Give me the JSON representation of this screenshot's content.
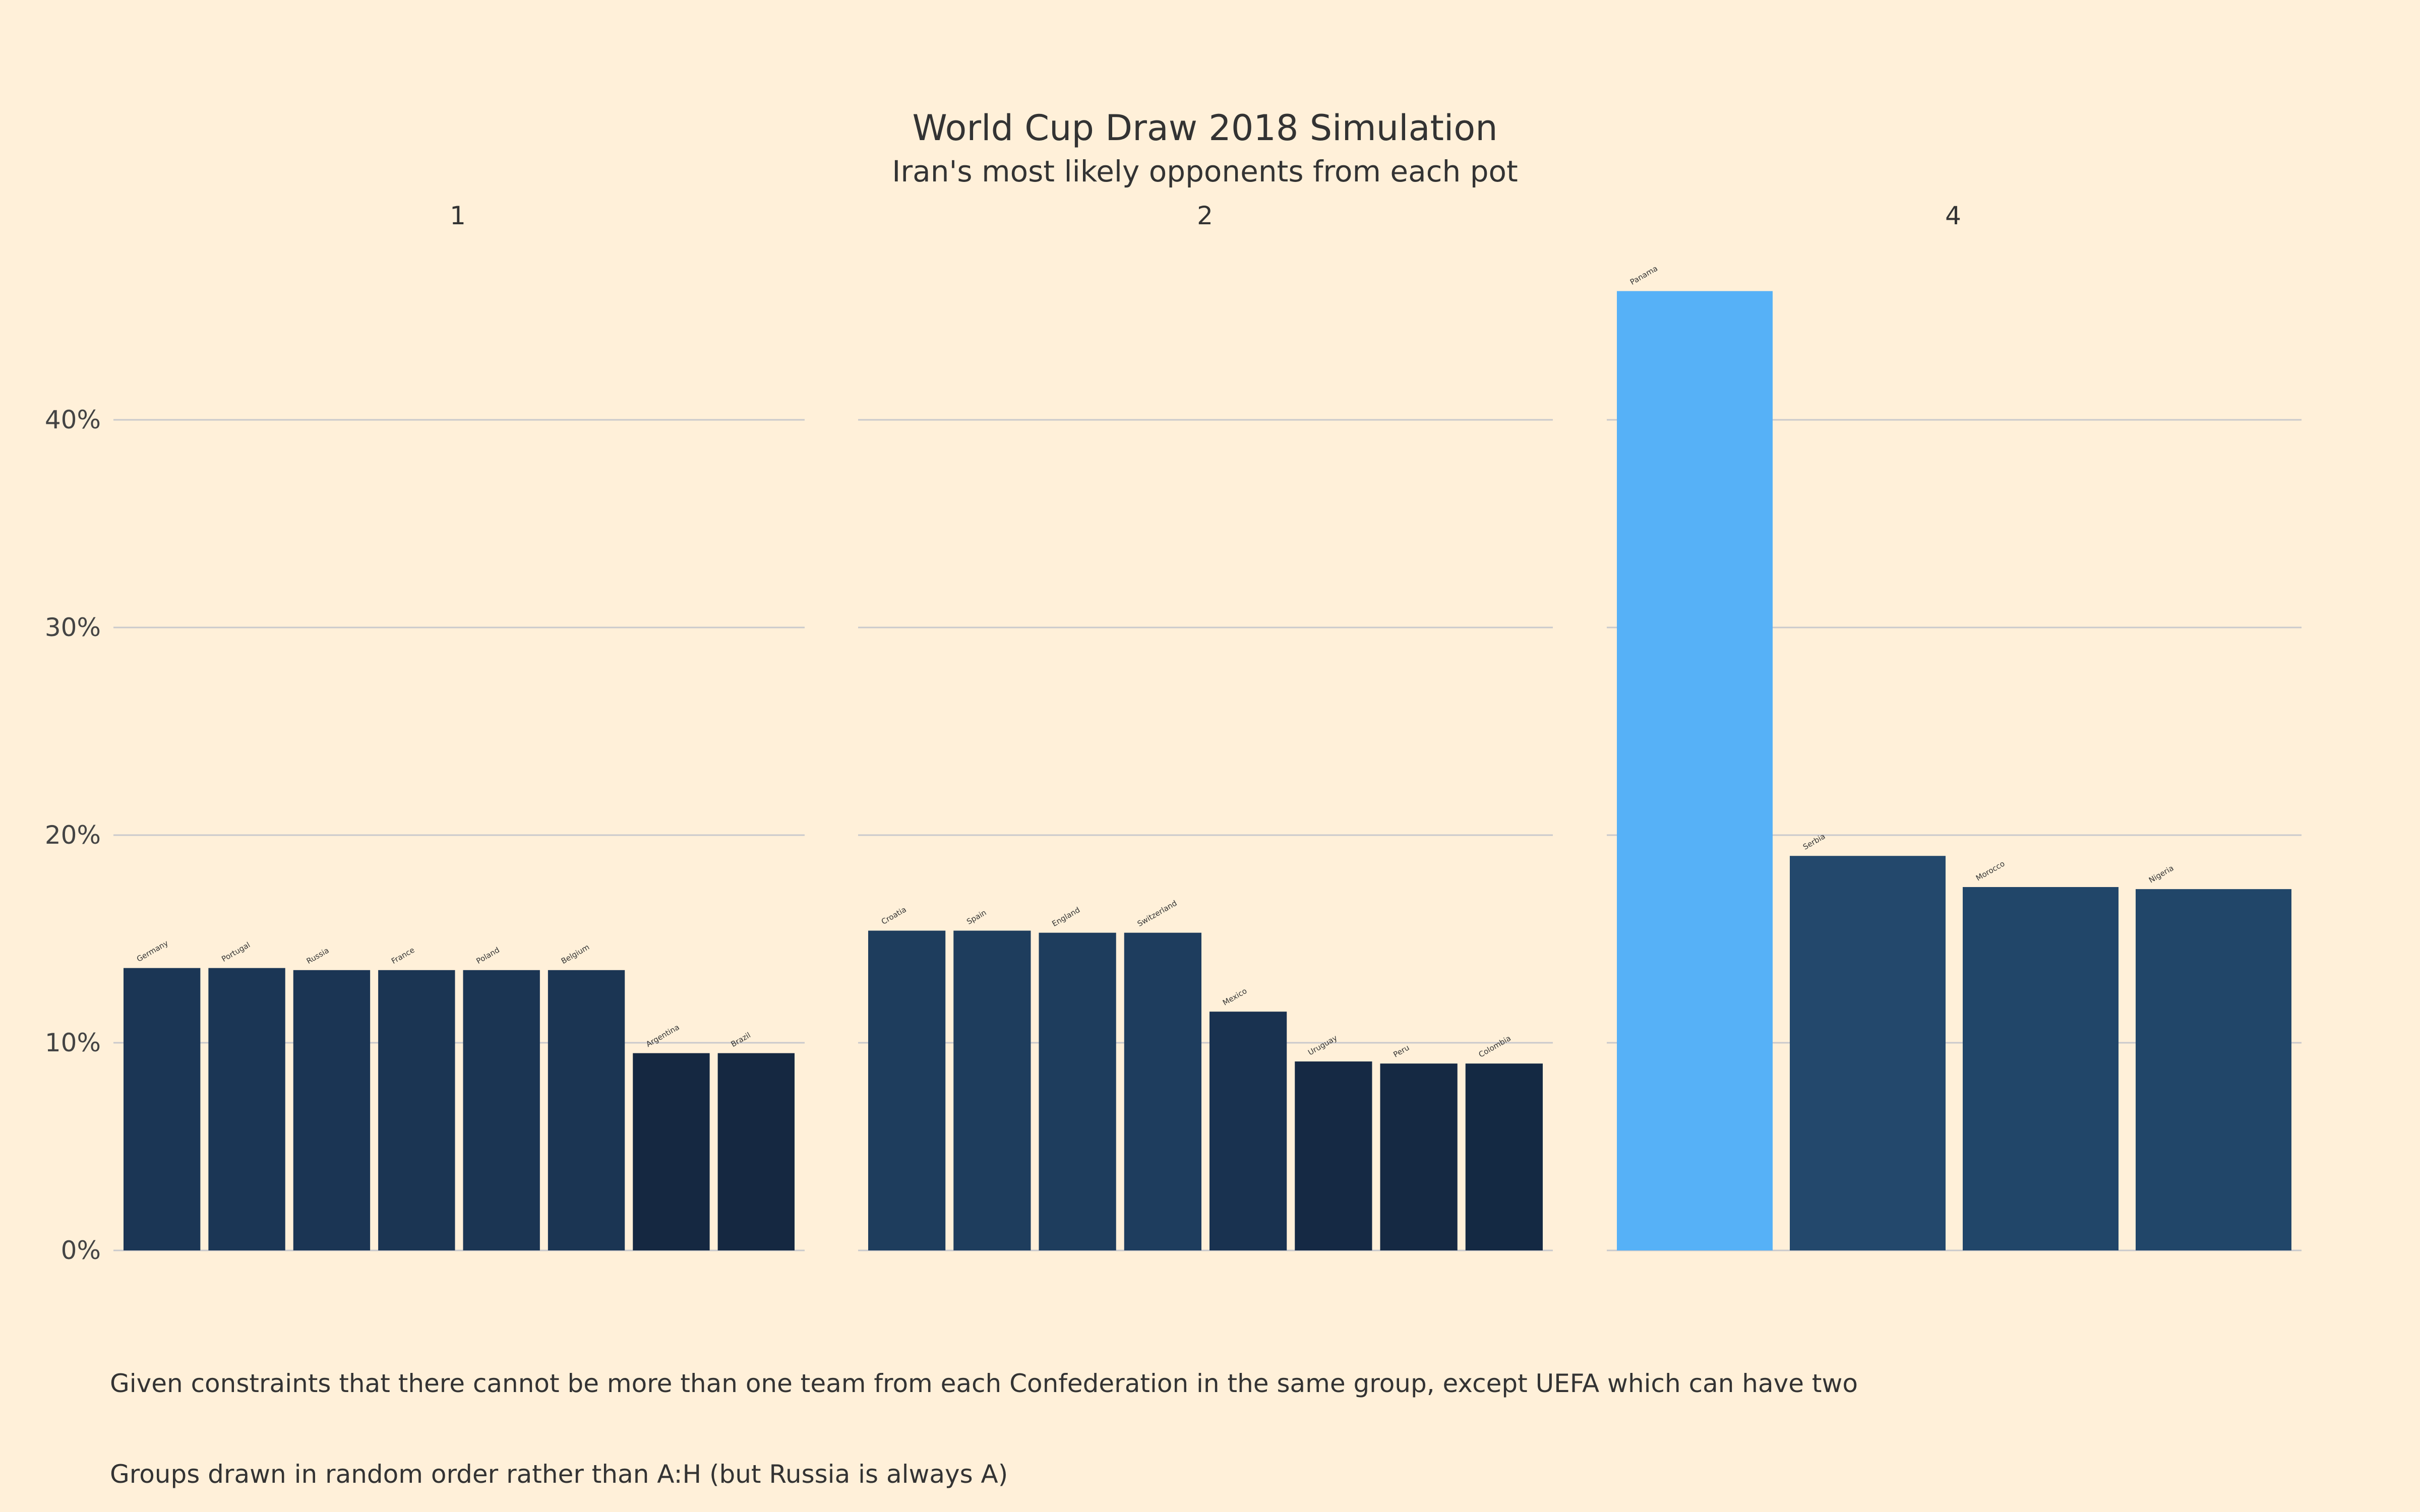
{
  "chart_data": {
    "type": "bar",
    "title": "World Cup Draw 2018 Simulation",
    "subtitle": "Iran's most likely opponents from each pot",
    "y_ticks": [
      "0%",
      "10%",
      "20%",
      "30%",
      "40%"
    ],
    "ylim": [
      0,
      46.5
    ],
    "grid": true,
    "facets": [
      {
        "label": "1",
        "categories": [
          "Germany",
          "Portugal",
          "Russia",
          "France",
          "Poland",
          "Belgium",
          "Argentina",
          "Brazil"
        ],
        "values": [
          13.6,
          13.6,
          13.5,
          13.5,
          13.5,
          13.5,
          9.5,
          9.5
        ],
        "colors": [
          "#1b3655",
          "#1b3655",
          "#1b3554",
          "#1b3553",
          "#1b3553",
          "#1b3553",
          "#152841",
          "#152841"
        ]
      },
      {
        "label": "2",
        "categories": [
          "Croatia",
          "Spain",
          "England",
          "Switzerland",
          "Mexico",
          "Uruguay",
          "Peru",
          "Colombia"
        ],
        "values": [
          15.4,
          15.4,
          15.3,
          15.3,
          11.5,
          9.1,
          9.0,
          9.0
        ],
        "colors": [
          "#1e3d5d",
          "#1e3d5d",
          "#1e3d5d",
          "#1e3d5e",
          "#193250",
          "#152944",
          "#152943",
          "#142943"
        ]
      },
      {
        "label": "4",
        "categories": [
          "Panama",
          "Serbia",
          "Morocco",
          "Nigeria"
        ],
        "values": [
          46.2,
          19.0,
          17.5,
          17.4
        ],
        "colors": [
          "#56b1f7",
          "#23486c",
          "#214669",
          "#214669"
        ]
      }
    ]
  },
  "captions": [
    "Given constraints that there cannot be more than one team from each Confederation in the same group, except UEFA which can have two",
    "Groups drawn in random order rather than A:H (but Russia is always A)"
  ]
}
